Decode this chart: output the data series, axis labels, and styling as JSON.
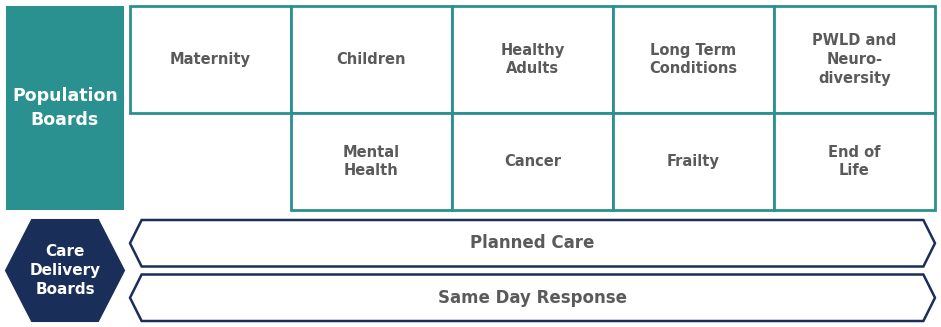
{
  "population_box_color": "#2a9090",
  "population_text": "Population\nBoards",
  "care_box_color": "#1a2e5a",
  "care_text": "Care\nDelivery\nBoards",
  "grid_border_color": "#2a9090",
  "cell_text_color": "#5a5a5a",
  "arrow_text_color": "#5a5a5a",
  "arrow_border_color": "#1a2e5a",
  "row1_cells": [
    "Maternity",
    "Children",
    "Healthy\nAdults",
    "Long Term\nConditions",
    "PWLD and\nNeuro-\ndiversity"
  ],
  "row2_cells": [
    "Mental\nHealth",
    "Cancer",
    "Frailty",
    "End of\nLife"
  ],
  "arrow_labels": [
    "Planned Care",
    "Same Day Response"
  ],
  "bg_color": "#ffffff",
  "fig_w": 9.41,
  "fig_h": 3.27,
  "dpi": 100
}
